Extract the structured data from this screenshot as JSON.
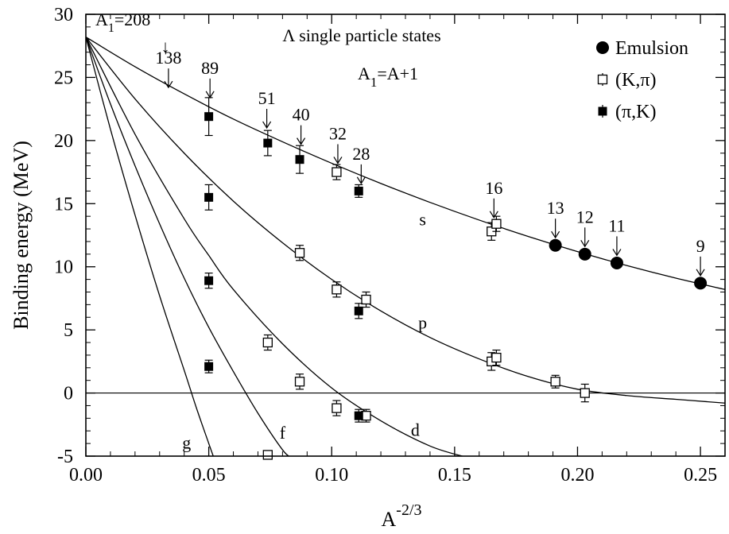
{
  "chart_data": {
    "type": "scatter",
    "title": "Λ single particle states",
    "subtitle": "A1=A+1",
    "xlabel": "A^-2/3",
    "ylabel": "Binding energy (MeV)",
    "xlim": [
      0.0,
      0.26
    ],
    "ylim": [
      -5,
      30
    ],
    "x_ticks": [
      "0.00",
      "0.05",
      "0.10",
      "0.15",
      "0.20",
      "0.25"
    ],
    "x_tick_values": [
      0.0,
      0.05,
      0.1,
      0.15,
      0.2,
      0.25
    ],
    "y_ticks": [
      "-5",
      "0",
      "5",
      "10",
      "15",
      "20",
      "25",
      "30"
    ],
    "y_tick_values": [
      -5,
      0,
      5,
      10,
      15,
      20,
      25,
      30
    ],
    "grid": false,
    "legend_position": "top-right",
    "series": [
      {
        "name": "Emulsion",
        "marker": "filled-circle",
        "points": [
          {
            "x": 0.191,
            "y": 11.7,
            "err": 0
          },
          {
            "x": 0.203,
            "y": 11.0,
            "err": 0
          },
          {
            "x": 0.216,
            "y": 10.3,
            "err": 0
          },
          {
            "x": 0.25,
            "y": 8.7,
            "err": 0
          }
        ]
      },
      {
        "name": "(K,π)",
        "marker": "open-square",
        "points": [
          {
            "x": 0.102,
            "y": 17.5,
            "err": 0.6
          },
          {
            "x": 0.165,
            "y": 12.8,
            "err": 0.7
          },
          {
            "x": 0.167,
            "y": 13.4,
            "err": 0.6
          },
          {
            "x": 0.087,
            "y": 11.1,
            "err": 0.6
          },
          {
            "x": 0.102,
            "y": 8.2,
            "err": 0.6
          },
          {
            "x": 0.114,
            "y": 7.4,
            "err": 0.6
          },
          {
            "x": 0.165,
            "y": 2.5,
            "err": 0.7
          },
          {
            "x": 0.167,
            "y": 2.8,
            "err": 0.6
          },
          {
            "x": 0.191,
            "y": 0.9,
            "err": 0.5
          },
          {
            "x": 0.203,
            "y": 0.0,
            "err": 0.7
          },
          {
            "x": 0.074,
            "y": 4.0,
            "err": 0.6
          },
          {
            "x": 0.087,
            "y": 0.9,
            "err": 0.6
          },
          {
            "x": 0.102,
            "y": -1.2,
            "err": 0.6
          },
          {
            "x": 0.114,
            "y": -1.8,
            "err": 0.5
          },
          {
            "x": 0.074,
            "y": -4.9,
            "err": 0.3
          }
        ]
      },
      {
        "name": "(π,K)",
        "marker": "filled-square",
        "points": [
          {
            "x": 0.05,
            "y": 21.9,
            "err": 1.5
          },
          {
            "x": 0.074,
            "y": 19.8,
            "err": 1.0
          },
          {
            "x": 0.087,
            "y": 18.5,
            "err": 1.1
          },
          {
            "x": 0.111,
            "y": 16.0,
            "err": 0.5
          },
          {
            "x": 0.05,
            "y": 15.5,
            "err": 1.0
          },
          {
            "x": 0.05,
            "y": 8.9,
            "err": 0.6
          },
          {
            "x": 0.111,
            "y": 6.5,
            "err": 0.6
          },
          {
            "x": 0.05,
            "y": 2.1,
            "err": 0.5
          },
          {
            "x": 0.111,
            "y": -1.8,
            "err": 0.5
          }
        ]
      }
    ],
    "curves": [
      {
        "label": "s",
        "label_x": 0.137,
        "label_y": 13.3,
        "points": [
          [
            0,
            28.2
          ],
          [
            0.02,
            25.85
          ],
          [
            0.04,
            23.7
          ],
          [
            0.06,
            21.7
          ],
          [
            0.08,
            19.9
          ],
          [
            0.1,
            18.2
          ],
          [
            0.12,
            16.6
          ],
          [
            0.14,
            15.1
          ],
          [
            0.16,
            13.7
          ],
          [
            0.18,
            12.4
          ],
          [
            0.2,
            11.2
          ],
          [
            0.22,
            10.1
          ],
          [
            0.24,
            9.1
          ],
          [
            0.26,
            8.2
          ]
        ]
      },
      {
        "label": "p",
        "label_x": 0.137,
        "label_y": 5.1,
        "points": [
          [
            0,
            28.2
          ],
          [
            0.02,
            23.3
          ],
          [
            0.04,
            19.0
          ],
          [
            0.06,
            15.2
          ],
          [
            0.08,
            11.9
          ],
          [
            0.1,
            9.0
          ],
          [
            0.12,
            6.5
          ],
          [
            0.14,
            4.4
          ],
          [
            0.16,
            2.7
          ],
          [
            0.18,
            1.3
          ],
          [
            0.2,
            0.3
          ],
          [
            0.22,
            -0.2
          ],
          [
            0.24,
            -0.5
          ],
          [
            0.26,
            -0.8
          ]
        ]
      },
      {
        "label": "d",
        "label_x": 0.134,
        "label_y": -3.4,
        "points": [
          [
            0,
            28.2
          ],
          [
            0.02,
            20.5
          ],
          [
            0.04,
            13.8
          ],
          [
            0.05,
            10.9
          ],
          [
            0.06,
            8.2
          ],
          [
            0.08,
            3.9
          ],
          [
            0.1,
            0.4
          ],
          [
            0.12,
            -2.2
          ],
          [
            0.14,
            -4.2
          ],
          [
            0.155,
            -5.1
          ]
        ]
      },
      {
        "label": "f",
        "label_x": 0.08,
        "label_y": -3.6,
        "points": [
          [
            0,
            28.2
          ],
          [
            0.01,
            22.9
          ],
          [
            0.02,
            18.0
          ],
          [
            0.03,
            13.4
          ],
          [
            0.04,
            9.1
          ],
          [
            0.05,
            5.2
          ],
          [
            0.06,
            1.7
          ],
          [
            0.07,
            -1.6
          ],
          [
            0.08,
            -4.5
          ],
          [
            0.0835,
            -5.1
          ]
        ]
      },
      {
        "label": "g",
        "label_x": 0.041,
        "label_y": -4.4,
        "points": [
          [
            0,
            28.2
          ],
          [
            0.01,
            20.9
          ],
          [
            0.02,
            14.1
          ],
          [
            0.03,
            7.7
          ],
          [
            0.04,
            1.8
          ],
          [
            0.045,
            -1.2
          ],
          [
            0.05,
            -4.0
          ],
          [
            0.052,
            -5.1
          ]
        ]
      }
    ],
    "hline": {
      "y": 0
    },
    "mass_annotations": [
      {
        "text": "138",
        "x": 0.0336,
        "y": 24.2
      },
      {
        "text": "89",
        "x": 0.0505,
        "y": 23.4
      },
      {
        "text": "51",
        "x": 0.0736,
        "y": 21.0
      },
      {
        "text": "40",
        "x": 0.0875,
        "y": 19.7
      },
      {
        "text": "32",
        "x": 0.1025,
        "y": 18.2
      },
      {
        "text": "28",
        "x": 0.112,
        "y": 16.6
      },
      {
        "text": "16",
        "x": 0.166,
        "y": 13.9
      },
      {
        "text": "13",
        "x": 0.191,
        "y": 12.3
      },
      {
        "text": "12",
        "x": 0.203,
        "y": 11.6
      },
      {
        "text": "11",
        "x": 0.216,
        "y": 10.9
      },
      {
        "text": "9",
        "x": 0.25,
        "y": 9.3
      }
    ],
    "a208_label": "A1=208"
  }
}
